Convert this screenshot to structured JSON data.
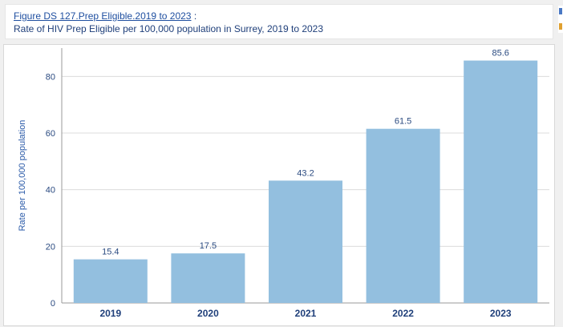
{
  "header": {
    "figure_link": "Figure DS 127.Prep Eligible.2019 to 2023",
    "separator": " :",
    "subtitle": "Rate of HIV Prep Eligible per 100,000 population in Surrey, 2019 to 2023"
  },
  "colors": {
    "bar": "#93bfdf",
    "grid": "#dcdcdc",
    "axis": "#999999"
  },
  "chart_data": {
    "type": "bar",
    "categories": [
      "2019",
      "2020",
      "2021",
      "2022",
      "2023"
    ],
    "values": [
      15.4,
      17.5,
      43.2,
      61.5,
      85.6
    ],
    "data_labels": [
      "15.4",
      "17.5",
      "43.2",
      "61.5",
      "85.6"
    ],
    "xlabel": "",
    "ylabel": "Rate per 100,000 population",
    "ylim": [
      0,
      90
    ],
    "yticks": [
      0,
      20,
      40,
      60,
      80
    ],
    "grid": true,
    "legend": "none"
  }
}
